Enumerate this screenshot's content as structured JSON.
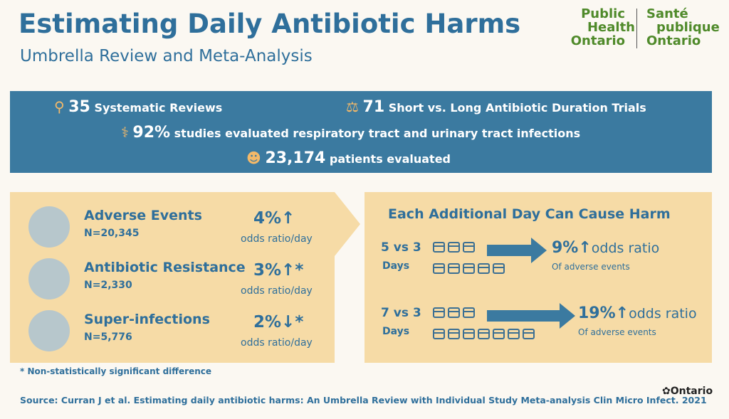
{
  "header": {
    "title": "Estimating Daily Antibiotic Harms",
    "subtitle": "Umbrella Review and Meta-Analysis",
    "logo_en": [
      "Public",
      "Health",
      "Ontario"
    ],
    "logo_fr": [
      "Santé",
      "publique",
      "Ontario"
    ]
  },
  "stats": [
    {
      "value": "35",
      "label": "Systematic Reviews"
    },
    {
      "value": "71",
      "label": "Short vs. Long Antibiotic Duration Trials"
    },
    {
      "value": "92%",
      "label": "studies evaluated respiratory tract and urinary tract infections"
    },
    {
      "value": "23,174",
      "label": "patients evaluated"
    }
  ],
  "outcomes": [
    {
      "name": "Adverse Events",
      "n": "N=20,345",
      "change": "4%↑",
      "unit": "odds ratio/day"
    },
    {
      "name": "Antibiotic Resistance",
      "n": "N=2,330",
      "change": "3%↑*",
      "unit": "odds ratio/day"
    },
    {
      "name": "Super-infections",
      "n": "N=5,776",
      "change": "2%↓*",
      "unit": "odds ratio/day"
    }
  ],
  "harm": {
    "title": "Each Additional Day Can Cause Harm",
    "comparisons": [
      {
        "label": "5 vs 3",
        "days": "Days",
        "change": "9%↑",
        "unit": "odds ratio",
        "note": "Of adverse events"
      },
      {
        "label": "7 vs 3",
        "days": "Days",
        "change": "19%↑",
        "unit": "odds ratio",
        "note": "Of adverse events"
      }
    ]
  },
  "footnote": "* Non-statistically significant difference",
  "source": "Source: Curran J et al. Estimating daily antibiotic harms: An Umbrella Review with Individual Study Meta-analysis Clin Micro Infect. 2021",
  "footer_logo": "Ontario"
}
